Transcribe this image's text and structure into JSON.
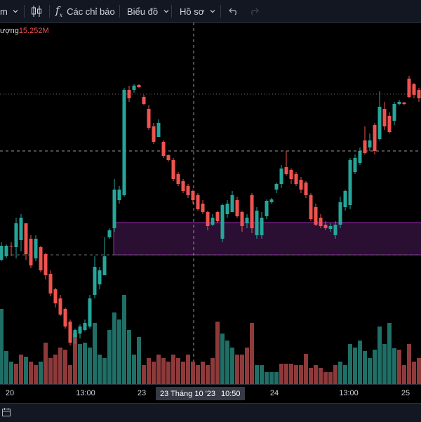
{
  "toolbar": {
    "symbol_tail": "m",
    "indicators_label": "Các chỉ báo",
    "chart_label": "Biểu đồ",
    "profile_label": "Hồ sơ"
  },
  "legend": {
    "label": "ượng",
    "value": "15.252M"
  },
  "time_axis": {
    "ticks": [
      "20",
      "13:00",
      "23",
      "24",
      "13:00",
      "25"
    ],
    "crosshair_label": "23 Tháng 10 '23",
    "crosshair_time": "10:50"
  },
  "colors": {
    "up": "#26a69a",
    "down": "#ef5350",
    "zone_fill": "#2a0f33",
    "zone_border": "#9c27b0"
  },
  "icons": {
    "candles": "candlestick-icon",
    "fx": "fx-icon",
    "undo": "undo-icon",
    "redo": "redo-icon"
  }
}
